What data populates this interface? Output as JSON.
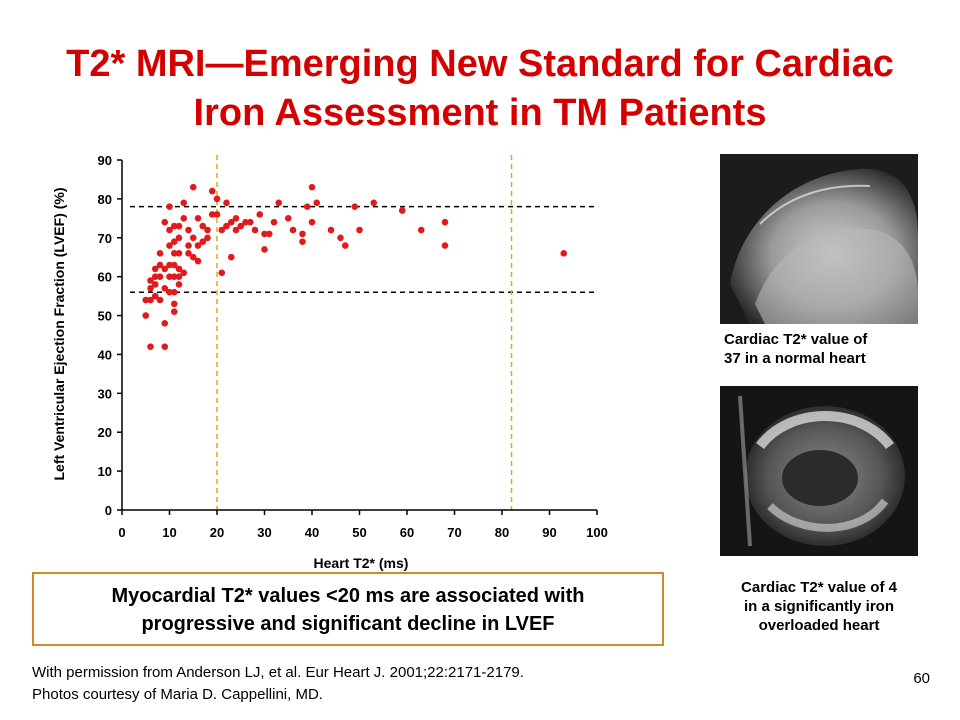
{
  "title": {
    "line1": "T2* MRI—Emerging New Standard for Cardiac",
    "line2": "Iron Assessment in TM Patients"
  },
  "chart_data": {
    "type": "scatter",
    "xlabel": "Heart T2* (ms)",
    "ylabel": "Left Ventricular Ejection Fraction (LVEF) (%)",
    "xlim": [
      0,
      100
    ],
    "ylim": [
      0,
      90
    ],
    "xticks": [
      "0",
      "10",
      "20",
      "30",
      "40",
      "50",
      "60",
      "70",
      "80",
      "90",
      "100"
    ],
    "yticks": [
      "0",
      "10",
      "20",
      "30",
      "40",
      "50",
      "60",
      "70",
      "80",
      "90"
    ],
    "grid": false,
    "reference_lines": {
      "vertical_x": [
        20,
        82
      ],
      "horizontal_y": [
        56,
        78
      ]
    },
    "point_color": "#e31a1c",
    "points": [
      [
        5,
        50
      ],
      [
        5,
        54
      ],
      [
        6,
        57
      ],
      [
        6,
        59
      ],
      [
        6,
        42
      ],
      [
        6,
        54
      ],
      [
        7,
        55
      ],
      [
        7,
        58
      ],
      [
        7,
        60
      ],
      [
        7,
        62
      ],
      [
        8,
        63
      ],
      [
        8,
        66
      ],
      [
        8,
        54
      ],
      [
        8,
        60
      ],
      [
        9,
        57
      ],
      [
        9,
        62
      ],
      [
        9,
        74
      ],
      [
        9,
        48
      ],
      [
        9,
        42
      ],
      [
        10,
        56
      ],
      [
        10,
        60
      ],
      [
        10,
        63
      ],
      [
        10,
        68
      ],
      [
        10,
        72
      ],
      [
        10,
        78
      ],
      [
        11,
        51
      ],
      [
        11,
        53
      ],
      [
        11,
        56
      ],
      [
        11,
        60
      ],
      [
        11,
        63
      ],
      [
        11,
        66
      ],
      [
        11,
        69
      ],
      [
        11,
        73
      ],
      [
        12,
        58
      ],
      [
        12,
        62
      ],
      [
        12,
        66
      ],
      [
        12,
        70
      ],
      [
        12,
        73
      ],
      [
        12,
        60
      ],
      [
        13,
        61
      ],
      [
        13,
        75
      ],
      [
        13,
        79
      ],
      [
        14,
        68
      ],
      [
        14,
        72
      ],
      [
        14,
        66
      ],
      [
        15,
        70
      ],
      [
        15,
        65
      ],
      [
        15,
        83
      ],
      [
        16,
        64
      ],
      [
        16,
        68
      ],
      [
        16,
        75
      ],
      [
        17,
        69
      ],
      [
        17,
        73
      ],
      [
        18,
        70
      ],
      [
        18,
        72
      ],
      [
        19,
        76
      ],
      [
        19,
        82
      ],
      [
        20,
        76
      ],
      [
        20,
        80
      ],
      [
        21,
        61
      ],
      [
        21,
        72
      ],
      [
        22,
        73
      ],
      [
        22,
        79
      ],
      [
        23,
        65
      ],
      [
        23,
        74
      ],
      [
        24,
        75
      ],
      [
        24,
        72
      ],
      [
        25,
        73
      ],
      [
        26,
        74
      ],
      [
        27,
        74
      ],
      [
        28,
        72
      ],
      [
        29,
        76
      ],
      [
        30,
        67
      ],
      [
        30,
        71
      ],
      [
        31,
        71
      ],
      [
        32,
        74
      ],
      [
        33,
        79
      ],
      [
        35,
        75
      ],
      [
        36,
        72
      ],
      [
        38,
        69
      ],
      [
        38,
        71
      ],
      [
        39,
        78
      ],
      [
        40,
        83
      ],
      [
        40,
        74
      ],
      [
        41,
        79
      ],
      [
        44,
        72
      ],
      [
        46,
        70
      ],
      [
        47,
        68
      ],
      [
        49,
        78
      ],
      [
        50,
        72
      ],
      [
        53,
        79
      ],
      [
        59,
        77
      ],
      [
        63,
        72
      ],
      [
        68,
        74
      ],
      [
        68,
        68
      ],
      [
        93,
        66
      ]
    ]
  },
  "images": {
    "top_caption_line1": "Cardiac T2* value of",
    "top_caption_line2": "37 in a normal heart",
    "bottom_caption_line1": "Cardiac T2* value of 4",
    "bottom_caption_line2": "in a significantly iron",
    "bottom_caption_line3": "overloaded heart"
  },
  "callout": {
    "line1": "Myocardial T2* values <20 ms are associated with",
    "line2": "progressive and significant decline in LVEF"
  },
  "footer": {
    "line1": "With permission from Anderson LJ, et al. Eur Heart J. 2001;22:2171-2179.",
    "line2": "Photos courtesy of Maria D. Cappellini, MD."
  },
  "page_number": "60"
}
